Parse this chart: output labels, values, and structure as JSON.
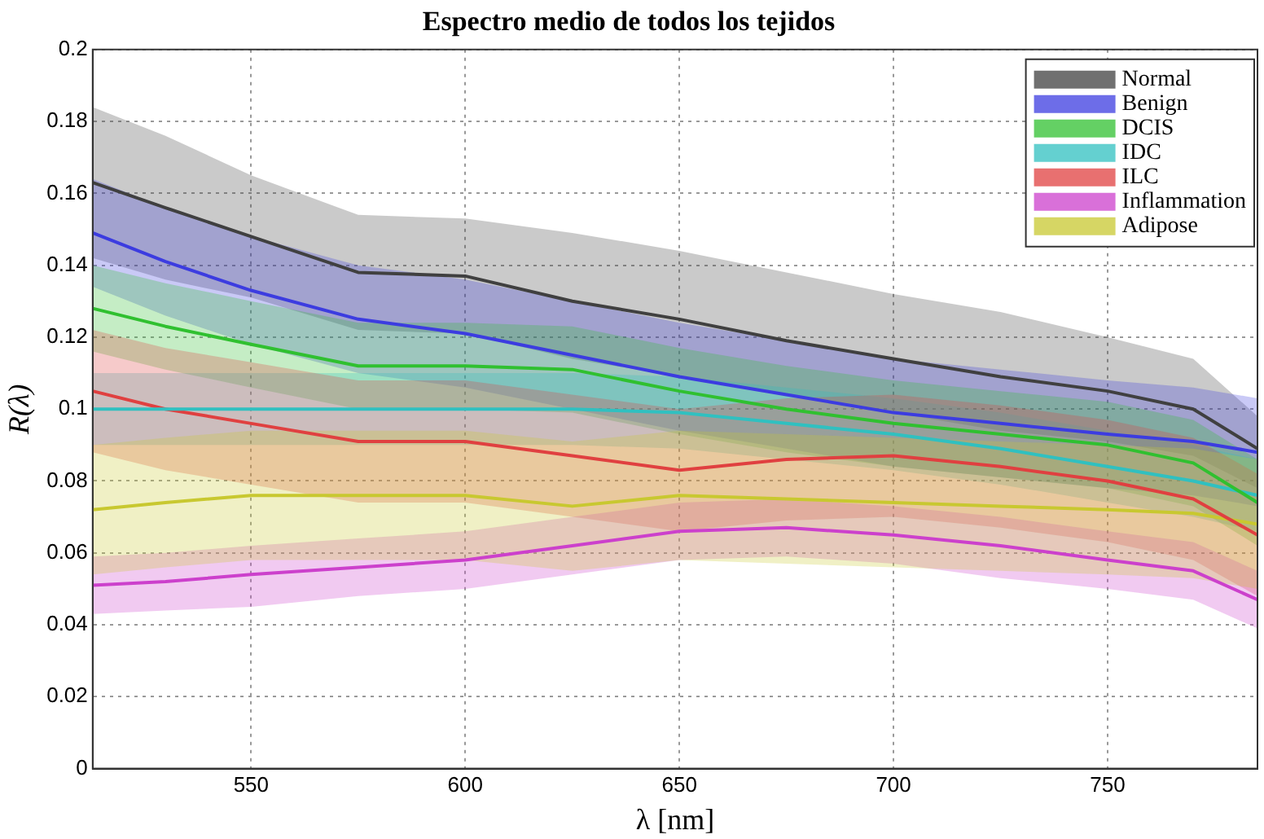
{
  "chart_data": {
    "type": "line",
    "title": "Espectro medio de todos los tejidos",
    "xlabel": "λ [nm]",
    "ylabel": "R(λ)",
    "x": [
      513,
      530,
      550,
      575,
      600,
      625,
      650,
      675,
      700,
      725,
      750,
      770,
      785
    ],
    "xlim": [
      513,
      785
    ],
    "xticks": [
      550,
      600,
      650,
      700,
      750
    ],
    "ylim": [
      0,
      0.2
    ],
    "yticks": [
      0,
      0.02,
      0.04,
      0.06,
      0.08,
      0.1,
      0.12,
      0.14,
      0.16,
      0.18,
      0.2
    ],
    "grid": true,
    "legend": "top right",
    "marker": "none",
    "line_style": "solid",
    "series": [
      {
        "name": "Normal",
        "color": "#404040",
        "values": [
          0.163,
          0.156,
          0.148,
          0.138,
          0.137,
          0.13,
          0.125,
          0.119,
          0.114,
          0.109,
          0.105,
          0.1,
          0.089
        ],
        "upper": [
          0.184,
          0.176,
          0.165,
          0.154,
          0.153,
          0.149,
          0.144,
          0.138,
          0.132,
          0.127,
          0.12,
          0.114,
          0.098
        ],
        "lower": [
          0.142,
          0.136,
          0.131,
          0.122,
          0.121,
          0.114,
          0.109,
          0.104,
          0.099,
          0.094,
          0.091,
          0.087,
          0.078
        ]
      },
      {
        "name": "Benign",
        "color": "#3c3ce0",
        "values": [
          0.149,
          0.141,
          0.133,
          0.125,
          0.121,
          0.115,
          0.109,
          0.104,
          0.099,
          0.096,
          0.093,
          0.091,
          0.088
        ],
        "upper": [
          0.164,
          0.156,
          0.148,
          0.14,
          0.136,
          0.13,
          0.124,
          0.119,
          0.114,
          0.111,
          0.108,
          0.106,
          0.103
        ],
        "lower": [
          0.134,
          0.126,
          0.118,
          0.11,
          0.106,
          0.1,
          0.094,
          0.089,
          0.084,
          0.081,
          0.078,
          0.076,
          0.073
        ]
      },
      {
        "name": "DCIS",
        "color": "#30c030",
        "values": [
          0.128,
          0.123,
          0.118,
          0.112,
          0.112,
          0.111,
          0.105,
          0.1,
          0.096,
          0.093,
          0.09,
          0.085,
          0.074
        ],
        "upper": [
          0.14,
          0.135,
          0.13,
          0.124,
          0.124,
          0.123,
          0.117,
          0.112,
          0.108,
          0.105,
          0.102,
          0.097,
          0.086
        ],
        "lower": [
          0.116,
          0.111,
          0.106,
          0.1,
          0.1,
          0.099,
          0.093,
          0.088,
          0.084,
          0.081,
          0.078,
          0.073,
          0.062
        ]
      },
      {
        "name": "IDC",
        "color": "#30c0c0",
        "values": [
          0.1,
          0.1,
          0.1,
          0.1,
          0.1,
          0.1,
          0.099,
          0.096,
          0.093,
          0.089,
          0.084,
          0.08,
          0.076
        ],
        "upper": [
          0.11,
          0.11,
          0.11,
          0.11,
          0.11,
          0.11,
          0.109,
          0.106,
          0.103,
          0.099,
          0.094,
          0.09,
          0.086
        ],
        "lower": [
          0.09,
          0.09,
          0.09,
          0.09,
          0.09,
          0.09,
          0.089,
          0.086,
          0.083,
          0.079,
          0.074,
          0.07,
          0.066
        ]
      },
      {
        "name": "ILC",
        "color": "#e04040",
        "values": [
          0.105,
          0.1,
          0.096,
          0.091,
          0.091,
          0.087,
          0.083,
          0.086,
          0.087,
          0.084,
          0.08,
          0.075,
          0.065
        ],
        "upper": [
          0.122,
          0.117,
          0.113,
          0.108,
          0.108,
          0.104,
          0.1,
          0.103,
          0.104,
          0.101,
          0.097,
          0.092,
          0.082
        ],
        "lower": [
          0.088,
          0.083,
          0.079,
          0.074,
          0.074,
          0.07,
          0.066,
          0.069,
          0.07,
          0.067,
          0.063,
          0.058,
          0.048
        ]
      },
      {
        "name": "Inflammation",
        "color": "#cc40cc",
        "values": [
          0.051,
          0.052,
          0.054,
          0.056,
          0.058,
          0.062,
          0.066,
          0.067,
          0.065,
          0.062,
          0.058,
          0.055,
          0.047
        ],
        "upper": [
          0.059,
          0.06,
          0.062,
          0.064,
          0.066,
          0.07,
          0.074,
          0.075,
          0.073,
          0.07,
          0.066,
          0.063,
          0.055
        ],
        "lower": [
          0.043,
          0.044,
          0.045,
          0.048,
          0.05,
          0.054,
          0.058,
          0.059,
          0.057,
          0.053,
          0.05,
          0.047,
          0.039
        ]
      },
      {
        "name": "Adipose",
        "color": "#c8c830",
        "values": [
          0.072,
          0.074,
          0.076,
          0.076,
          0.076,
          0.073,
          0.076,
          0.075,
          0.074,
          0.073,
          0.072,
          0.071,
          0.068
        ],
        "upper": [
          0.09,
          0.092,
          0.094,
          0.094,
          0.094,
          0.091,
          0.094,
          0.093,
          0.092,
          0.091,
          0.09,
          0.089,
          0.086
        ],
        "lower": [
          0.054,
          0.056,
          0.058,
          0.058,
          0.058,
          0.055,
          0.058,
          0.057,
          0.056,
          0.055,
          0.054,
          0.053,
          0.05
        ]
      }
    ]
  }
}
